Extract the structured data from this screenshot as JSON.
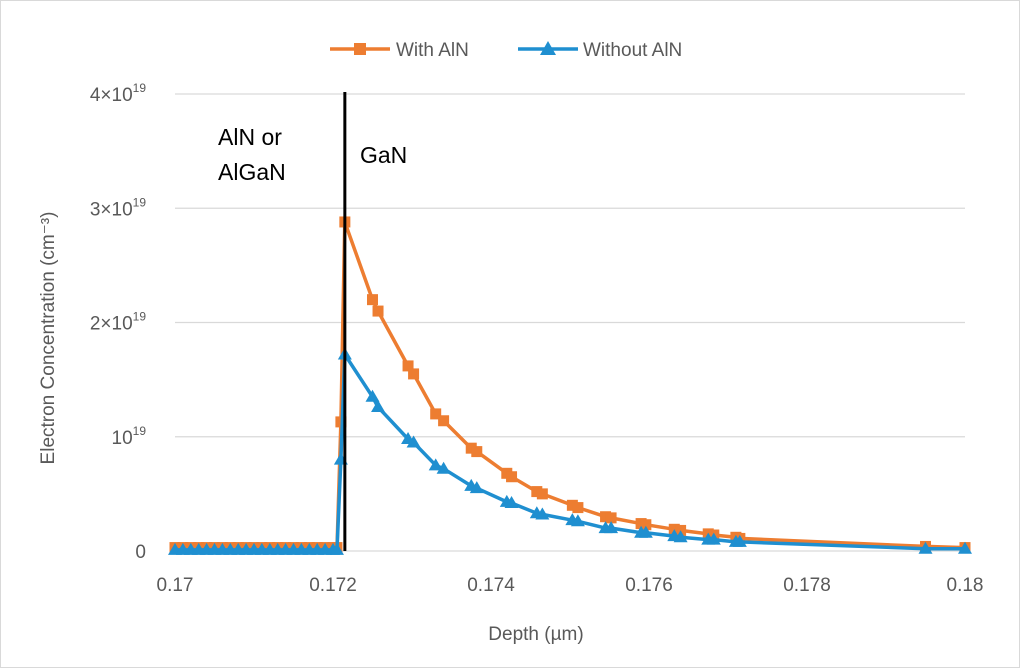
{
  "chart_data": {
    "type": "line",
    "title": "",
    "xlabel": "Depth (µm)",
    "ylabel": "Electron Concentration (cm⁻³)",
    "xlim": [
      0.17,
      0.18
    ],
    "ylim": [
      0,
      4e+19
    ],
    "grid": "horizontal",
    "legend_position": "top-center",
    "x_ticks": [
      "0.17",
      "0.172",
      "0.174",
      "0.176",
      "0.178",
      "0.18"
    ],
    "y_ticks": [
      {
        "value": 0,
        "base": "0",
        "exp": ""
      },
      {
        "value": 1e+19,
        "base": "10",
        "exp": "19"
      },
      {
        "value": 2e+19,
        "base": "2×10",
        "exp": "19"
      },
      {
        "value": 3e+19,
        "base": "3×10",
        "exp": "19"
      },
      {
        "value": 4e+19,
        "base": "4×10",
        "exp": "19"
      }
    ],
    "boundary_x": 0.17215,
    "annotations": {
      "left_line1": "AlN or",
      "left_line2": "AlGaN",
      "right": "GaN"
    },
    "series": [
      {
        "name": "With AlN",
        "color": "#ed7d31",
        "marker": "square",
        "x": [
          0.17,
          0.1701,
          0.1702,
          0.1703,
          0.1704,
          0.1705,
          0.1706,
          0.1707,
          0.1708,
          0.1709,
          0.171,
          0.1711,
          0.1712,
          0.1713,
          0.1714,
          0.1715,
          0.1716,
          0.1717,
          0.1718,
          0.1719,
          0.172,
          0.17205,
          0.1721,
          0.17215,
          0.1725,
          0.17257,
          0.17295,
          0.17302,
          0.1733,
          0.1734,
          0.17375,
          0.17382,
          0.1742,
          0.17426,
          0.17458,
          0.17465,
          0.17503,
          0.1751,
          0.17545,
          0.17552,
          0.1759,
          0.17596,
          0.17632,
          0.1764,
          0.17675,
          0.17682,
          0.1771,
          0.17715,
          0.1795,
          0.18
        ],
        "y": [
          3e+17,
          3e+17,
          3e+17,
          3e+17,
          3e+17,
          3e+17,
          3e+17,
          3e+17,
          3e+17,
          3e+17,
          3e+17,
          3e+17,
          3e+17,
          3e+17,
          3e+17,
          3e+17,
          3e+17,
          3e+17,
          3e+17,
          3e+17,
          3e+17,
          3e+17,
          1.13e+19,
          2.88e+19,
          2.2e+19,
          2.1e+19,
          1.62e+19,
          1.55e+19,
          1.2e+19,
          1.14e+19,
          9e+18,
          8.7e+18,
          6.8e+18,
          6.5e+18,
          5.2e+18,
          5e+18,
          4e+18,
          3.8e+18,
          3e+18,
          2.9e+18,
          2.4e+18,
          2.3e+18,
          1.9e+18,
          1.8e+18,
          1.5e+18,
          1.4e+18,
          1.2e+18,
          1.1e+18,
          4e+17,
          3e+17
        ]
      },
      {
        "name": "Without AlN",
        "color": "#1f8fd0",
        "marker": "triangle",
        "x": [
          0.17,
          0.1701,
          0.1702,
          0.1703,
          0.1704,
          0.1705,
          0.1706,
          0.1707,
          0.1708,
          0.1709,
          0.171,
          0.1711,
          0.1712,
          0.1713,
          0.1714,
          0.1715,
          0.1716,
          0.1717,
          0.1718,
          0.1719,
          0.172,
          0.17205,
          0.1721,
          0.17215,
          0.1725,
          0.17257,
          0.17295,
          0.17302,
          0.1733,
          0.1734,
          0.17375,
          0.17382,
          0.1742,
          0.17426,
          0.17458,
          0.17465,
          0.17503,
          0.1751,
          0.17545,
          0.17552,
          0.1759,
          0.17596,
          0.17632,
          0.1764,
          0.17675,
          0.17682,
          0.1771,
          0.17715,
          0.1795,
          0.18
        ],
        "y": [
          1e+17,
          1e+17,
          1e+17,
          1e+17,
          1e+17,
          1e+17,
          1e+17,
          1e+17,
          1e+17,
          1e+17,
          1e+17,
          1e+17,
          1e+17,
          1e+17,
          1e+17,
          1e+17,
          1e+17,
          1e+17,
          1e+17,
          1e+17,
          1e+17,
          1e+17,
          8e+18,
          1.72e+19,
          1.35e+19,
          1.26e+19,
          9.8e+18,
          9.5e+18,
          7.5e+18,
          7.2e+18,
          5.7e+18,
          5.5e+18,
          4.3e+18,
          4.2e+18,
          3.3e+18,
          3.2e+18,
          2.7e+18,
          2.6e+18,
          2e+18,
          2e+18,
          1.6e+18,
          1.6e+18,
          1.3e+18,
          1.2e+18,
          1e+18,
          1e+18,
          8e+17,
          8e+17,
          2e+17,
          2e+17
        ]
      }
    ]
  }
}
